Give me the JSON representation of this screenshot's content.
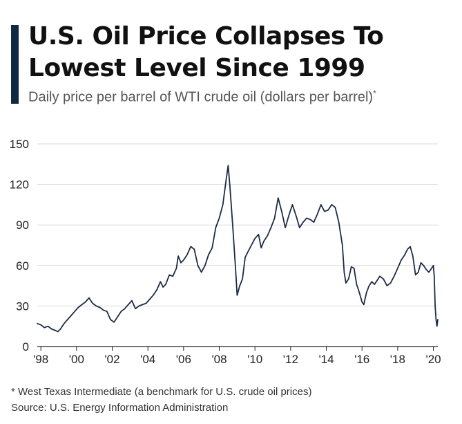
{
  "title": "U.S. Oil Price Collapses To Lowest Level Since 1999",
  "subtitle": "Daily price per barrel of WTI crude oil (dollars per barrel)",
  "subtitle_mark": "*",
  "footnote": "* West Texas Intermediate (a benchmark for U.S. crude oil prices)",
  "source": "Source: U.S. Energy Information Administration",
  "colors": {
    "accent": "#0f2846",
    "line": "#1c2b45",
    "grid": "#d9d9d9"
  },
  "chart_data": {
    "type": "line",
    "title": "U.S. Oil Price Collapses To Lowest Level Since 1999",
    "xlabel": "",
    "ylabel": "dollars per barrel",
    "ylim": [
      0,
      150
    ],
    "xlim": [
      1997.8,
      2020.25
    ],
    "yticks": [
      0,
      30,
      60,
      90,
      120,
      150
    ],
    "xticks": [
      1998,
      2000,
      2002,
      2004,
      2006,
      2008,
      2010,
      2012,
      2014,
      2016,
      2018,
      2020
    ],
    "xtick_labels": [
      "'98",
      "'00",
      "'02",
      "'04",
      "'06",
      "'08",
      "'10",
      "'12",
      "'14",
      "'16",
      "'18",
      "'20"
    ],
    "series": [
      {
        "name": "WTI crude oil",
        "x": [
          1997.8,
          1998.0,
          1998.2,
          1998.4,
          1998.6,
          1998.8,
          1998.95,
          1999.1,
          1999.3,
          1999.5,
          1999.7,
          1999.9,
          2000.1,
          2000.3,
          2000.5,
          2000.7,
          2000.9,
          2001.1,
          2001.3,
          2001.5,
          2001.7,
          2001.9,
          2002.1,
          2002.3,
          2002.5,
          2002.7,
          2002.9,
          2003.1,
          2003.3,
          2003.5,
          2003.7,
          2003.9,
          2004.1,
          2004.3,
          2004.5,
          2004.7,
          2004.85,
          2005.0,
          2005.2,
          2005.4,
          2005.6,
          2005.7,
          2005.85,
          2006.0,
          2006.2,
          2006.4,
          2006.6,
          2006.8,
          2007.0,
          2007.2,
          2007.4,
          2007.6,
          2007.8,
          2008.0,
          2008.2,
          2008.4,
          2008.5,
          2008.6,
          2008.75,
          2008.9,
          2009.0,
          2009.15,
          2009.3,
          2009.45,
          2009.6,
          2009.8,
          2010.0,
          2010.2,
          2010.35,
          2010.5,
          2010.7,
          2010.9,
          2011.1,
          2011.3,
          2011.5,
          2011.7,
          2011.9,
          2012.1,
          2012.3,
          2012.5,
          2012.7,
          2012.9,
          2013.1,
          2013.3,
          2013.5,
          2013.7,
          2013.9,
          2014.1,
          2014.3,
          2014.5,
          2014.7,
          2014.9,
          2015.0,
          2015.1,
          2015.25,
          2015.4,
          2015.55,
          2015.7,
          2015.85,
          2016.0,
          2016.1,
          2016.25,
          2016.4,
          2016.55,
          2016.7,
          2016.85,
          2017.0,
          2017.2,
          2017.4,
          2017.6,
          2017.8,
          2018.0,
          2018.2,
          2018.4,
          2018.55,
          2018.7,
          2018.85,
          2019.0,
          2019.15,
          2019.3,
          2019.45,
          2019.6,
          2019.75,
          2019.9,
          2020.0,
          2020.05,
          2020.1,
          2020.15,
          2020.2,
          2020.25
        ],
        "values": [
          17,
          16,
          14,
          15,
          13,
          12,
          11,
          13,
          17,
          20,
          23,
          26,
          29,
          31,
          33,
          36,
          32,
          30,
          29,
          27,
          26,
          20,
          18,
          22,
          26,
          28,
          31,
          34,
          28,
          30,
          31,
          32,
          35,
          38,
          42,
          48,
          44,
          46,
          53,
          52,
          58,
          67,
          62,
          64,
          68,
          74,
          72,
          60,
          55,
          60,
          68,
          73,
          88,
          95,
          105,
          125,
          134,
          118,
          90,
          60,
          38,
          45,
          50,
          66,
          70,
          75,
          80,
          83,
          73,
          78,
          82,
          88,
          95,
          110,
          100,
          88,
          97,
          105,
          97,
          88,
          92,
          95,
          94,
          92,
          98,
          105,
          100,
          101,
          105,
          103,
          92,
          75,
          55,
          47,
          50,
          59,
          58,
          46,
          40,
          33,
          31,
          40,
          45,
          48,
          46,
          49,
          52,
          50,
          45,
          47,
          52,
          58,
          64,
          68,
          72,
          74,
          67,
          53,
          55,
          62,
          60,
          57,
          55,
          58,
          60,
          52,
          30,
          20,
          15,
          20
        ]
      }
    ]
  }
}
